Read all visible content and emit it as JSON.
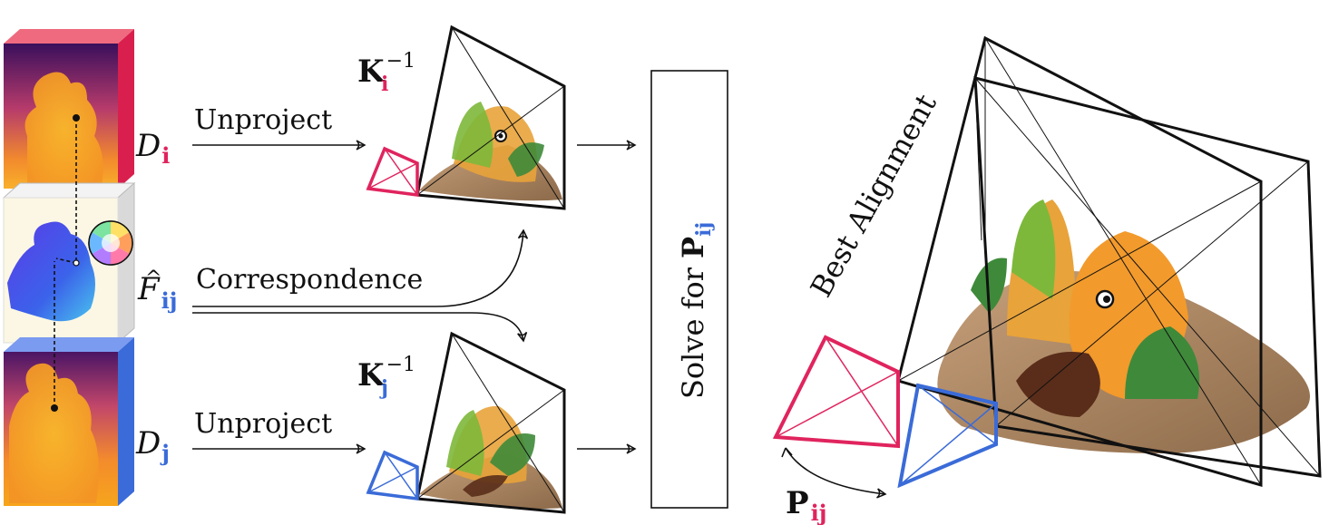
{
  "labels": {
    "unproject_top": "Unproject",
    "unproject_bottom": "Unproject",
    "correspondence": "Correspondence",
    "solve_for": "Solve for",
    "best_alignment": "Best Alignment"
  },
  "symbols": {
    "depth_i_base": "D",
    "depth_i_sub": "i",
    "depth_j_base": "D",
    "depth_j_sub": "j",
    "flow_base": "F",
    "flow_hat": "^",
    "flow_sub": "ij",
    "kinv_i_base": "K",
    "kinv_i_sub": "i",
    "kinv_i_sup": "−1",
    "kinv_j_base": "K",
    "kinv_j_sub": "j",
    "kinv_j_sup": "−1",
    "pose_base": "P",
    "pose_sub": "ij",
    "solve_pose_base": "P",
    "solve_pose_sub": "ij"
  },
  "colors": {
    "camera_i": "#e0245e",
    "camera_j": "#3a6bd8",
    "ink": "#111111",
    "depth_near": "#f7a51c",
    "depth_far": "#3a0f5c",
    "flow_bg": "#fbf7e4",
    "flow_blob": "#3b3fe8"
  },
  "icons": {
    "color_wheel": "color-wheel-icon",
    "point_cloud": "point-cloud"
  }
}
